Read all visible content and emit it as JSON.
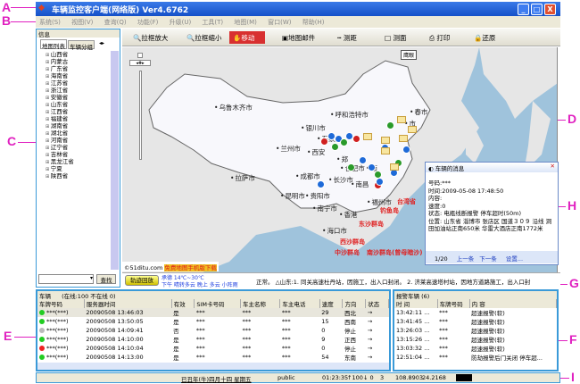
{
  "annotations": [
    "A",
    "B",
    "C",
    "D",
    "E",
    "F",
    "G",
    "H",
    "I"
  ],
  "title": "车辆监控客户端(网络版) Ver4.6762",
  "window_buttons": [
    "_",
    "□",
    "X"
  ],
  "menu": [
    "系统(S)",
    "视图(V)",
    "查询(Q)",
    "功能(F)",
    "升级(U)",
    "工具(T)",
    "地图(M)",
    "窗口(W)",
    "帮助(H)"
  ],
  "left": {
    "title": "信息",
    "tabs": [
      "地图列表",
      "车辆分组"
    ],
    "provinces": [
      "山西省",
      "内蒙古",
      "广东省",
      "海南省",
      "江苏省",
      "浙江省",
      "安徽省",
      "山东省",
      "江西省",
      "福建省",
      "湖南省",
      "湖北省",
      "河南省",
      "辽宁省",
      "吉林省",
      "黑龙江省",
      "宁夏",
      "陕西省"
    ],
    "search_label": "查找"
  },
  "toolbar": [
    "拉框放大",
    "拉框缩小",
    "移动",
    "地图邮件",
    "测距",
    "测面",
    "打印",
    "还原"
  ],
  "map": {
    "overview_label": "鹰眼",
    "cities": [
      "乌鲁木齐市",
      "呼和浩特市",
      "银川市",
      "石家庄",
      "兰州市",
      "西安",
      "郑",
      "合肥市",
      "南",
      "成都市",
      "长沙市",
      "南昌",
      "拉萨市",
      "昆明市",
      "贵阳市",
      "福州市",
      "南宁市",
      "香港",
      "海口市",
      "春市",
      "市"
    ],
    "red_labels": [
      "台湾省",
      "钓鱼岛",
      "东沙群岛",
      "西沙群岛",
      "中沙群岛",
      "南沙群岛(曾母暗沙)"
    ],
    "credit": "©51ditu.com",
    "credit_link": "免费地图手机版下载"
  },
  "popup": {
    "title": "车辆的消息",
    "lines": [
      "号码:***",
      "时间:2009-05-08 17:48:50",
      "内容:",
      "速度:0",
      "状态: 电瓶线断报警 停车超时(50m)",
      "位置: 山东省 淄博市 张店区 国道３０９ 沿线 洞田加油站正南650米 华雷大酒店正南1772米"
    ],
    "page": "1/20",
    "prev": "上一条",
    "next": "下一条",
    "settings": "设置..."
  },
  "ticker": {
    "button": "轨迹回放",
    "weather1": "承德 14℃~30℃",
    "weather2": "下午 晴转多云 晚上 多云 小阵雨",
    "message": "正常。 △山东:1. 同关高速杜丹站，因施工，出入口封闭。 2. 济莱高速塔村站，因地方道路施工，出入口封"
  },
  "vehicles": {
    "title": "车辆",
    "summary": "(在线:100 不在线 0)",
    "columns": [
      "车牌号码",
      "服务器时间",
      "有效",
      "SIM卡号码",
      "车主名称",
      "车主电话",
      "速度",
      "方向",
      "状态"
    ],
    "rows": [
      {
        "status": "#22cc22",
        "plate": "***(***)",
        "time": "20090508 13:46:03",
        "valid": "是",
        "sim": "***",
        "owner": "***",
        "phone": "***",
        "speed": "29",
        "dir": "西北",
        "state": "→"
      },
      {
        "status": "#22cc22",
        "plate": "***(***)",
        "time": "20090508 13:50:05",
        "valid": "是",
        "sim": "***",
        "owner": "***",
        "phone": "***",
        "speed": "15",
        "dir": "西南",
        "state": "→"
      },
      {
        "status": "#bbbbbb",
        "plate": "***(***)",
        "time": "20090508 14:09:41",
        "valid": "否",
        "sim": "***",
        "owner": "***",
        "phone": "***",
        "speed": "0",
        "dir": "停止",
        "state": "→"
      },
      {
        "status": "#22cc22",
        "plate": "***(***)",
        "time": "20090508 14:10:00",
        "valid": "是",
        "sim": "***",
        "owner": "***",
        "phone": "***",
        "speed": "9",
        "dir": "正西",
        "state": "→"
      },
      {
        "status": "#ee2222",
        "plate": "***(***)",
        "time": "20090508 14:10:04",
        "valid": "是",
        "sim": "***",
        "owner": "***",
        "phone": "***",
        "speed": "0",
        "dir": "停止",
        "state": "→"
      },
      {
        "status": "#22cc22",
        "plate": "***(***)",
        "time": "20090508 14:13:00",
        "valid": "是",
        "sim": "***",
        "owner": "***",
        "phone": "***",
        "speed": "54",
        "dir": "东南",
        "state": "→"
      }
    ]
  },
  "alarms": {
    "title": "报警车辆",
    "count": "(6)",
    "columns": [
      "时 间",
      "车牌号码",
      "内 容"
    ],
    "rows": [
      {
        "time": "13:42:11 ...",
        "plate": "***",
        "content": "超速报警(软)"
      },
      {
        "time": "13:41:45 ...",
        "plate": "***",
        "content": "超速报警(软)"
      },
      {
        "time": "13:26:03 ...",
        "plate": "***",
        "content": "超速报警(软)"
      },
      {
        "time": "13:15:26 ...",
        "plate": "***",
        "content": "超速报警(软)"
      },
      {
        "time": "13:03:32 ...",
        "plate": "***",
        "content": "超速报警(软)"
      },
      {
        "time": "12:51:04 ...",
        "plate": "***",
        "content": "防劫报警后门关闭 停车超..."
      }
    ]
  },
  "status": {
    "date": "已丑年(牛)四月十四 星期五",
    "user": "public",
    "clock": "01:23:35",
    "up": "↑100",
    "down": "↓ 0",
    "num": "3",
    "lon": "108.8903",
    "lat": "24.2168"
  },
  "colors": {
    "title_bar": "#1450c8",
    "panel_border": "#3a9ad8",
    "move_button": "#d83030",
    "annotation": "#e020c0"
  }
}
